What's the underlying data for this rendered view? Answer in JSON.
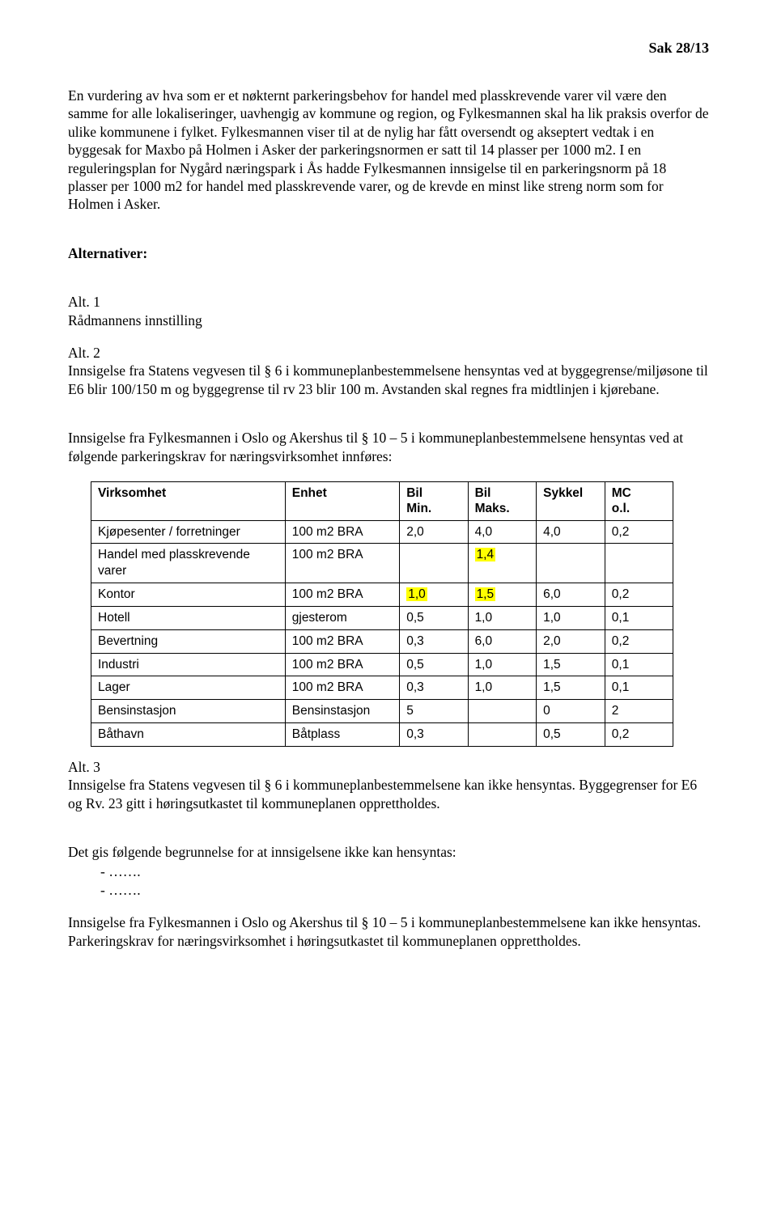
{
  "header": {
    "case_no": "Sak 28/13"
  },
  "p1": "En vurdering av hva som er et nøkternt parkeringsbehov for handel med plasskrevende varer vil være den samme for alle lokaliseringer, uavhengig av kommune og region, og Fylkesmannen skal ha lik praksis overfor de ulike kommunene i fylket. Fylkesmannen viser til at de nylig har fått oversendt og akseptert vedtak i en byggesak for Maxbo på Holmen i Asker der parkeringsnormen er satt til 14 plasser per 1000 m2. I en reguleringsplan for Nygård næringspark i Ås hadde Fylkesmannen innsigelse til en parkeringsnorm på 18 plasser per 1000 m2 for handel med plasskrevende varer, og de krevde en minst like streng norm som for Holmen i Asker.",
  "alternatives_heading": "Alternativer:",
  "alt1": {
    "title": "Alt. 1",
    "text": "Rådmannens innstilling"
  },
  "alt2": {
    "title": "Alt. 2",
    "p1": "Innsigelse fra Statens vegvesen til § 6 i kommuneplanbestemmelsene hensyntas ved at byggegrense/miljøsone til E6 blir 100/150 m og byggegrense til rv 23 blir 100 m. Avstanden skal regnes fra midtlinjen i kjørebane.",
    "p2": "Innsigelse fra Fylkesmannen i Oslo og Akershus til § 10 – 5 i kommuneplanbestemmelsene hensyntas ved at følgende parkeringskrav for næringsvirksomhet innføres:"
  },
  "table": {
    "columns": [
      "Virksomhet",
      "Enhet",
      "Bil Min.",
      "Bil Maks.",
      "Sykkel",
      "MC o.l."
    ],
    "header_two_line": {
      "col3_l1": "Bil",
      "col3_l2": "Min.",
      "col4_l1": "Bil",
      "col4_l2": "Maks.",
      "col6_l1": "MC",
      "col6_l2": "o.l."
    },
    "rows": [
      {
        "virk": "Kjøpesenter / forretninger",
        "enhet": "100 m2 BRA",
        "min": "2,0",
        "maks": "4,0",
        "sykkel": "4,0",
        "mc": "0,2",
        "hl_min": false,
        "hl_maks": false
      },
      {
        "virk": "Handel med plasskrevende varer",
        "enhet": "100 m2 BRA",
        "min": "",
        "maks": "1,4",
        "sykkel": "",
        "mc": "",
        "hl_min": false,
        "hl_maks": true
      },
      {
        "virk": "Kontor",
        "enhet": "100 m2 BRA",
        "min": "1,0",
        "maks": "1,5",
        "sykkel": "6,0",
        "mc": "0,2",
        "hl_min": true,
        "hl_maks": true
      },
      {
        "virk": "Hotell",
        "enhet": "gjesterom",
        "min": "0,5",
        "maks": "1,0",
        "sykkel": "1,0",
        "mc": "0,1",
        "hl_min": false,
        "hl_maks": false
      },
      {
        "virk": "Bevertning",
        "enhet": "100 m2 BRA",
        "min": "0,3",
        "maks": "6,0",
        "sykkel": "2,0",
        "mc": "0,2",
        "hl_min": false,
        "hl_maks": false
      },
      {
        "virk": "Industri",
        "enhet": "100 m2 BRA",
        "min": "0,5",
        "maks": "1,0",
        "sykkel": "1,5",
        "mc": "0,1",
        "hl_min": false,
        "hl_maks": false
      },
      {
        "virk": "Lager",
        "enhet": "100 m2 BRA",
        "min": "0,3",
        "maks": "1,0",
        "sykkel": "1,5",
        "mc": "0,1",
        "hl_min": false,
        "hl_maks": false
      },
      {
        "virk": "Bensinstasjon",
        "enhet": "Bensinstasjon",
        "min": "5",
        "maks": "",
        "sykkel": "0",
        "mc": "2",
        "hl_min": false,
        "hl_maks": false
      },
      {
        "virk": "Båthavn",
        "enhet": "Båtplass",
        "min": "0,3",
        "maks": "",
        "sykkel": "0,5",
        "mc": "0,2",
        "hl_min": false,
        "hl_maks": false
      }
    ],
    "colors": {
      "highlight": "#ffff00",
      "border": "#000000",
      "background": "#ffffff"
    }
  },
  "alt3": {
    "title": "Alt. 3",
    "p1": "Innsigelse fra Statens vegvesen til § 6 i kommuneplanbestemmelsene kan ikke hensyntas. Byggegrenser for E6 og Rv. 23 gitt i høringsutkastet til kommuneplanen opprettholdes.",
    "p2": "Det gis følgende begrunnelse for at innsigelsene ikke kan hensyntas:",
    "dash1": "…….",
    "dash2": "…….",
    "p3": "Innsigelse fra Fylkesmannen i Oslo og Akershus til § 10 – 5 i kommuneplanbestemmelsene kan ikke hensyntas. Parkeringskrav for næringsvirksomhet i høringsutkastet til kommuneplanen opprettholdes."
  }
}
